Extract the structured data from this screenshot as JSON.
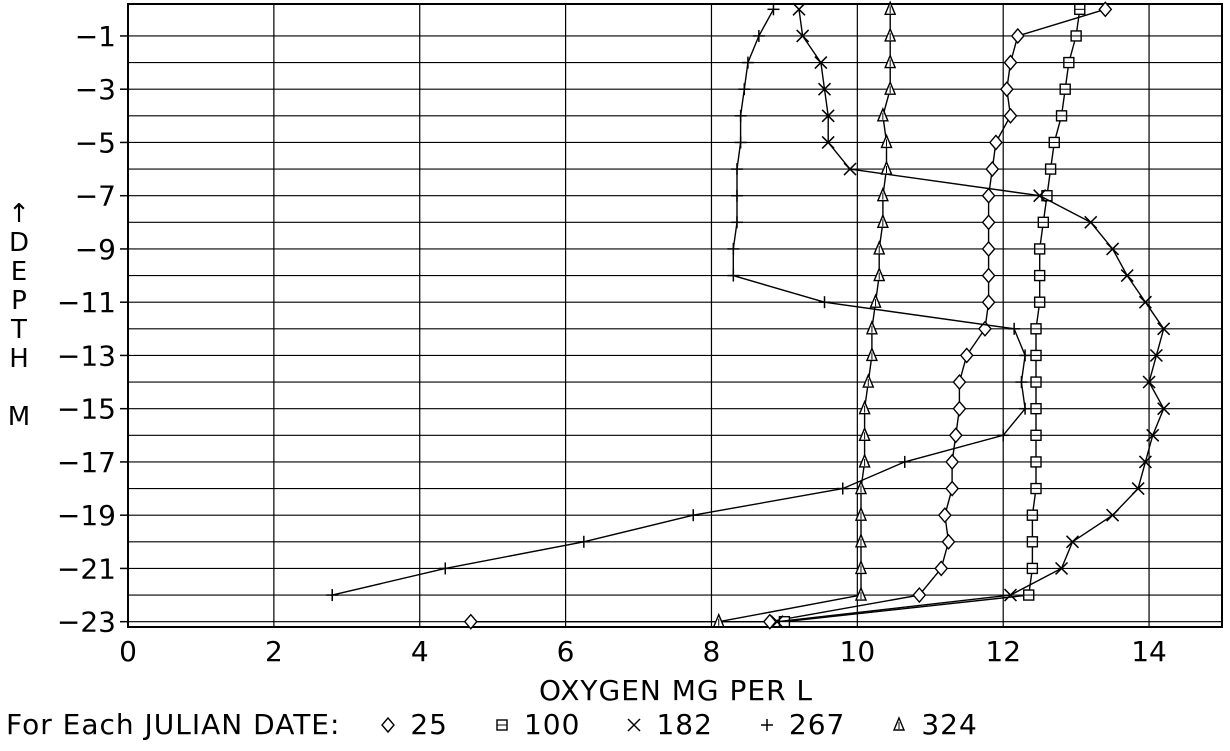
{
  "chart_data": {
    "type": "line",
    "xlabel": "OXYGEN MG PER L",
    "ylabel_letters": [
      "↑",
      "D",
      "E",
      "P",
      "T",
      "H",
      "",
      "M"
    ],
    "xlim": [
      0,
      15
    ],
    "ylim": [
      -23.2,
      0.2
    ],
    "x_ticks": [
      "0",
      "2",
      "4",
      "6",
      "8",
      "10",
      "12",
      "14"
    ],
    "y_ticks": [
      "−1",
      "−3",
      "−5",
      "−7",
      "−9",
      "−11",
      "−13",
      "−15",
      "−17",
      "−19",
      "−21",
      "−23"
    ],
    "grid": true,
    "legend_position": "bottom",
    "legend_title": "For Each JULIAN DATE:",
    "series": [
      {
        "name": "25",
        "marker": "diamond",
        "x": [
          13.4,
          12.2,
          12.1,
          12.05,
          12.1,
          11.9,
          11.85,
          11.8,
          11.8,
          11.8,
          11.8,
          11.8,
          11.75,
          11.5,
          11.4,
          11.4,
          11.35,
          11.3,
          11.3,
          11.2,
          11.25,
          11.15,
          10.85,
          8.8,
          4.7
        ],
        "y": [
          0,
          -1,
          -2,
          -3,
          -4,
          -5,
          -6,
          -7,
          -8,
          -9,
          -10,
          -11,
          -12,
          -13,
          -14,
          -15,
          -16,
          -17,
          -18,
          -19,
          -20,
          -21,
          -22,
          -23,
          -23
        ]
      },
      {
        "name": "100",
        "marker": "square",
        "x": [
          13.05,
          13.0,
          12.9,
          12.85,
          12.8,
          12.7,
          12.65,
          12.6,
          12.55,
          12.5,
          12.5,
          12.5,
          12.45,
          12.45,
          12.45,
          12.45,
          12.45,
          12.45,
          12.45,
          12.4,
          12.4,
          12.4,
          12.35,
          9.0
        ],
        "y": [
          0,
          -1,
          -2,
          -3,
          -4,
          -5,
          -6,
          -7,
          -8,
          -9,
          -10,
          -11,
          -12,
          -13,
          -14,
          -15,
          -16,
          -17,
          -18,
          -19,
          -20,
          -21,
          -22,
          -23
        ]
      },
      {
        "name": "182",
        "marker": "cross",
        "x": [
          9.2,
          9.25,
          9.5,
          9.55,
          9.6,
          9.6,
          9.9,
          12.5,
          13.2,
          13.5,
          13.7,
          13.95,
          14.2,
          14.1,
          14.0,
          14.2,
          14.05,
          13.95,
          13.85,
          13.5,
          12.95,
          12.8,
          12.1,
          8.9
        ],
        "y": [
          0,
          -1,
          -2,
          -3,
          -4,
          -5,
          -6,
          -7,
          -8,
          -9,
          -10,
          -11,
          -12,
          -13,
          -14,
          -15,
          -16,
          -17,
          -18,
          -19,
          -20,
          -21,
          -22,
          -23
        ]
      },
      {
        "name": "267",
        "marker": "plus",
        "x": [
          8.85,
          8.65,
          8.5,
          8.45,
          8.4,
          8.4,
          8.35,
          8.35,
          8.35,
          8.3,
          8.3,
          9.55,
          12.15,
          12.3,
          12.25,
          12.3,
          12.0,
          10.65,
          9.8,
          7.75,
          6.25,
          4.35,
          2.8
        ],
        "y": [
          0,
          -1,
          -2,
          -3,
          -4,
          -5,
          -6,
          -7,
          -8,
          -9,
          -10,
          -11,
          -12,
          -13,
          -14,
          -15,
          -16,
          -17,
          -18,
          -19,
          -20,
          -21,
          -22
        ]
      },
      {
        "name": "324",
        "marker": "triangle",
        "x": [
          10.45,
          10.45,
          10.45,
          10.45,
          10.35,
          10.4,
          10.4,
          10.35,
          10.35,
          10.3,
          10.3,
          10.25,
          10.2,
          10.2,
          10.15,
          10.1,
          10.1,
          10.1,
          10.05,
          10.05,
          10.05,
          10.05,
          10.05,
          8.1
        ],
        "y": [
          0,
          -1,
          -2,
          -3,
          -4,
          -5,
          -6,
          -7,
          -8,
          -9,
          -10,
          -11,
          -12,
          -13,
          -14,
          -15,
          -16,
          -17,
          -18,
          -19,
          -20,
          -21,
          -22,
          -23
        ]
      }
    ]
  }
}
